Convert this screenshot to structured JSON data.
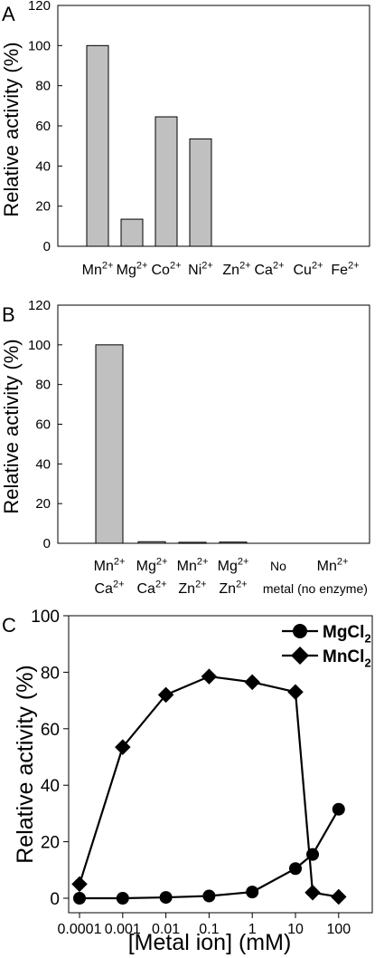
{
  "chart_data": [
    {
      "panel": "A",
      "type": "bar",
      "ylabel": "Relative activity (%)",
      "xlabel": "",
      "ylim": [
        0,
        120
      ],
      "yticks": [
        "0",
        "20",
        "40",
        "60",
        "80",
        "100",
        "120"
      ],
      "categories": [
        {
          "base": "Mn",
          "sup": "2+"
        },
        {
          "base": "Mg",
          "sup": "2+"
        },
        {
          "base": "Co",
          "sup": "2+"
        },
        {
          "base": "Ni",
          "sup": "2+"
        },
        {
          "base": "Zn",
          "sup": "2+"
        },
        {
          "base": "Ca",
          "sup": "2+"
        },
        {
          "base": "Cu",
          "sup": "2+"
        },
        {
          "base": "Fe",
          "sup": "2+"
        }
      ],
      "values": [
        100,
        13.5,
        64.5,
        53.5,
        0,
        0,
        0,
        0
      ]
    },
    {
      "panel": "B",
      "type": "bar",
      "ylabel": "Relative activity (%)",
      "xlabel": "",
      "ylim": [
        0,
        120
      ],
      "yticks": [
        "0",
        "20",
        "40",
        "60",
        "80",
        "100",
        "120"
      ],
      "categories": [
        {
          "line1": {
            "base": "Mn",
            "sup": "2+"
          },
          "line2": {
            "base": "Ca",
            "sup": "2+"
          }
        },
        {
          "line1": {
            "base": "Mg",
            "sup": "2+"
          },
          "line2": {
            "base": "Ca",
            "sup": "2+"
          }
        },
        {
          "line1": {
            "base": "Mn",
            "sup": "2+"
          },
          "line2": {
            "base": "Zn",
            "sup": "2+"
          }
        },
        {
          "line1": {
            "base": "Mg",
            "sup": "2+"
          },
          "line2": {
            "base": "Zn",
            "sup": "2+"
          }
        },
        {
          "line1": {
            "base": "No",
            "sup": ""
          },
          "line2": {
            "base": "metal",
            "sup": ""
          }
        },
        {
          "line1": {
            "base": "Mn",
            "sup": "2+"
          },
          "line2": {
            "base": "(no enzyme)",
            "sup": ""
          }
        }
      ],
      "values": [
        100,
        0.8,
        0.5,
        0.6,
        0,
        0
      ]
    },
    {
      "panel": "C",
      "type": "line",
      "xscale": "log",
      "xlabel": "[Metal ion] (mM)",
      "ylabel": "Relative activity (%)",
      "ylim": [
        0,
        100
      ],
      "yticks": [
        "0",
        "20",
        "40",
        "60",
        "80",
        "100"
      ],
      "xticks": [
        "0.0001",
        "0.001",
        "0.01",
        "0.1",
        "1",
        "10",
        "100"
      ],
      "legend_position": "top-right",
      "series": [
        {
          "name": {
            "base": "MgCl",
            "sub": "2"
          },
          "marker": "circle",
          "x": [
            0.0001,
            0.001,
            0.01,
            0.1,
            1,
            10,
            25,
            100
          ],
          "y": [
            0,
            0,
            0.3,
            0.8,
            2.2,
            10.5,
            15.5,
            31.5
          ]
        },
        {
          "name": {
            "base": "MnCl",
            "sub": "2"
          },
          "marker": "diamond",
          "x": [
            0.0001,
            0.001,
            0.01,
            0.1,
            1,
            10,
            25,
            100
          ],
          "y": [
            5,
            53.5,
            72,
            78.5,
            76.5,
            73,
            2,
            0.5
          ]
        }
      ]
    }
  ],
  "panel_labels": [
    "A",
    "B",
    "C"
  ]
}
